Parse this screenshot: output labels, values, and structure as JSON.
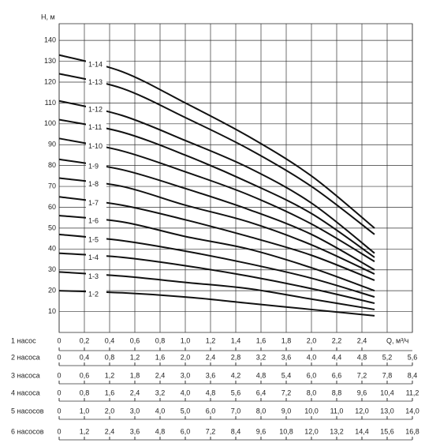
{
  "chart_data": {
    "type": "line",
    "y_label": "H, м",
    "x_label": "Q, м³/ч",
    "ylim": [
      0,
      148
    ],
    "yticks": [
      10,
      20,
      30,
      40,
      50,
      60,
      70,
      80,
      90,
      100,
      110,
      120,
      130,
      140
    ],
    "xlim": [
      0,
      2.8
    ],
    "xgrid": [
      0,
      0.2,
      0.4,
      0.6,
      0.8,
      1.0,
      1.2,
      1.4,
      1.6,
      1.8,
      2.0,
      2.2,
      2.4,
      2.6,
      2.8
    ],
    "x_row_label": "1 насос",
    "xticks": [
      0,
      {
        "value": 0.2,
        "label": "0,2"
      },
      {
        "value": 0.4,
        "label": "0,4"
      },
      {
        "value": 0.6,
        "label": "0,6"
      },
      {
        "value": 0.8,
        "label": "0,8"
      },
      {
        "value": 1.0,
        "label": "1,0"
      },
      {
        "value": 1.2,
        "label": "1,2"
      },
      {
        "value": 1.4,
        "label": "1,4"
      },
      {
        "value": 1.6,
        "label": "1,6"
      },
      {
        "value": 1.8,
        "label": "1,8"
      },
      {
        "value": 2.0,
        "label": "2,0"
      },
      {
        "value": 2.2,
        "label": "2,2"
      },
      {
        "value": 2.4,
        "label": "2,4"
      }
    ],
    "x": [
      0,
      0.5,
      1.0,
      1.5,
      2.0,
      2.5
    ],
    "color": "#111111",
    "series": [
      {
        "name": "1-14",
        "values": [
          133,
          125,
          110,
          94,
          75,
          50
        ]
      },
      {
        "name": "1-13",
        "values": [
          124,
          117,
          103,
          88,
          70,
          47
        ]
      },
      {
        "name": "1-12",
        "values": [
          111,
          104,
          92,
          79,
          62,
          38
        ]
      },
      {
        "name": "1-11",
        "values": [
          102,
          96,
          85,
          72,
          57,
          36
        ]
      },
      {
        "name": "1-10",
        "values": [
          93,
          87,
          77,
          66,
          52,
          34
        ]
      },
      {
        "name": "1-9",
        "values": [
          83,
          78,
          69,
          59,
          47,
          30
        ]
      },
      {
        "name": "1-8",
        "values": [
          74,
          70,
          61,
          53,
          42,
          28
        ]
      },
      {
        "name": "1-7",
        "values": [
          65,
          61,
          54,
          46,
          37,
          25
        ]
      },
      {
        "name": "1-6",
        "values": [
          56,
          53,
          46,
          40,
          31,
          20
        ]
      },
      {
        "name": "1-5",
        "values": [
          47,
          44,
          39,
          33,
          26,
          17
        ]
      },
      {
        "name": "1-4",
        "values": [
          38,
          36,
          32,
          27,
          21,
          14
        ]
      },
      {
        "name": "1-3",
        "values": [
          29,
          27,
          24,
          21,
          16,
          11
        ]
      },
      {
        "name": "1-2",
        "values": [
          20,
          19,
          17,
          14,
          11,
          8
        ]
      }
    ],
    "scale_rows": [
      {
        "name": "2 насоса",
        "labels": [
          "0",
          "0,4",
          "0,8",
          "1,2",
          "1,6",
          "2,0",
          "2,4",
          "2,8",
          "3,2",
          "3,6",
          "4,0",
          "4,4",
          "4,8",
          "5,2",
          "5,6"
        ]
      },
      {
        "name": "3 насоса",
        "labels": [
          "0",
          "0,6",
          "1,2",
          "1,8",
          "2,4",
          "3,0",
          "3,6",
          "4,2",
          "4,8",
          "5,4",
          "6,0",
          "6,6",
          "7,2",
          "7,8",
          "8,4"
        ]
      },
      {
        "name": "4 насоса",
        "labels": [
          "0",
          "0,8",
          "1,6",
          "2,4",
          "3,2",
          "4,0",
          "4,8",
          "5,6",
          "6,4",
          "7,2",
          "8,0",
          "8,8",
          "9,6",
          "10,4",
          "11,2"
        ]
      },
      {
        "name": "5 насосов",
        "labels": [
          "0",
          "1,0",
          "2,0",
          "3,0",
          "4,0",
          "5,0",
          "6,0",
          "7,0",
          "8,0",
          "9,0",
          "10,0",
          "11,0",
          "12,0",
          "13,0",
          "14,0"
        ]
      },
      {
        "name": "6 насосов",
        "labels": [
          "0",
          "1,2",
          "2,4",
          "3,6",
          "4,8",
          "6,0",
          "7,2",
          "8,4",
          "9,6",
          "10,8",
          "12,0",
          "13,2",
          "14,4",
          "15,6",
          "16,8"
        ]
      }
    ]
  }
}
